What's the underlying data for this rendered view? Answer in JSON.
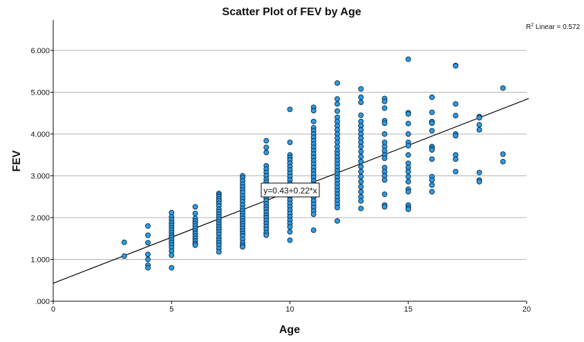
{
  "chart_data": {
    "type": "scatter",
    "title": "Scatter Plot of FEV by Age",
    "xlabel": "Age",
    "ylabel": "FEV",
    "xlim": [
      0,
      20
    ],
    "ylim": [
      0,
      6.5
    ],
    "x_ticks": [
      0,
      5,
      10,
      15,
      20
    ],
    "x_tick_labels": [
      "0",
      "5",
      "10",
      "15",
      "20"
    ],
    "y_ticks": [
      0,
      1,
      2,
      3,
      4,
      5,
      6
    ],
    "y_tick_labels": [
      ".000",
      "1.000",
      "2.000",
      "3.000",
      "4.000",
      "5.000",
      "6.000"
    ],
    "grid": "horizontal",
    "fit_line": {
      "intercept": 0.43,
      "slope": 0.22,
      "label": "y=0.43+0.22*x"
    },
    "r2_label": {
      "prefix": "R",
      "sup": "2",
      "text": " Linear = 0.572"
    },
    "marker_color": "#2E9BE6",
    "marker_edge": "#0b2a44",
    "points": [
      [
        3,
        1.41
      ],
      [
        3,
        1.08
      ],
      [
        4,
        1.8
      ],
      [
        4,
        1.58
      ],
      [
        4,
        1.4
      ],
      [
        4,
        1.12
      ],
      [
        4,
        1.0
      ],
      [
        4,
        0.86
      ],
      [
        4,
        0.8
      ],
      [
        5,
        2.12
      ],
      [
        5,
        2.02
      ],
      [
        5,
        1.95
      ],
      [
        5,
        1.88
      ],
      [
        5,
        1.82
      ],
      [
        5,
        1.76
      ],
      [
        5,
        1.7
      ],
      [
        5,
        1.64
      ],
      [
        5,
        1.58
      ],
      [
        5,
        1.53
      ],
      [
        5,
        1.47
      ],
      [
        5,
        1.41
      ],
      [
        5,
        1.35
      ],
      [
        5,
        1.28
      ],
      [
        5,
        1.2
      ],
      [
        5,
        1.1
      ],
      [
        5,
        0.8
      ],
      [
        6,
        2.26
      ],
      [
        6,
        2.1
      ],
      [
        6,
        1.98
      ],
      [
        6,
        1.92
      ],
      [
        6,
        1.86
      ],
      [
        6,
        1.8
      ],
      [
        6,
        1.74
      ],
      [
        6,
        1.68
      ],
      [
        6,
        1.62
      ],
      [
        6,
        1.56
      ],
      [
        6,
        1.5
      ],
      [
        6,
        1.44
      ],
      [
        6,
        1.38
      ],
      [
        6,
        1.34
      ],
      [
        7,
        2.58
      ],
      [
        7,
        2.54
      ],
      [
        7,
        2.5
      ],
      [
        7,
        2.45
      ],
      [
        7,
        2.4
      ],
      [
        7,
        2.34
      ],
      [
        7,
        2.28
      ],
      [
        7,
        2.2
      ],
      [
        7,
        2.14
      ],
      [
        7,
        2.08
      ],
      [
        7,
        2.02
      ],
      [
        7,
        1.96
      ],
      [
        7,
        1.9
      ],
      [
        7,
        1.84
      ],
      [
        7,
        1.78
      ],
      [
        7,
        1.72
      ],
      [
        7,
        1.66
      ],
      [
        7,
        1.6
      ],
      [
        7,
        1.52
      ],
      [
        7,
        1.46
      ],
      [
        7,
        1.4
      ],
      [
        7,
        1.34
      ],
      [
        7,
        1.26
      ],
      [
        7,
        1.18
      ],
      [
        8,
        3.0
      ],
      [
        8,
        2.95
      ],
      [
        8,
        2.88
      ],
      [
        8,
        2.8
      ],
      [
        8,
        2.73
      ],
      [
        8,
        2.66
      ],
      [
        8,
        2.6
      ],
      [
        8,
        2.52
      ],
      [
        8,
        2.45
      ],
      [
        8,
        2.38
      ],
      [
        8,
        2.3
      ],
      [
        8,
        2.22
      ],
      [
        8,
        2.16
      ],
      [
        8,
        2.1
      ],
      [
        8,
        2.04
      ],
      [
        8,
        1.98
      ],
      [
        8,
        1.92
      ],
      [
        8,
        1.86
      ],
      [
        8,
        1.8
      ],
      [
        8,
        1.74
      ],
      [
        8,
        1.68
      ],
      [
        8,
        1.62
      ],
      [
        8,
        1.56
      ],
      [
        8,
        1.48
      ],
      [
        8,
        1.4
      ],
      [
        8,
        1.34
      ],
      [
        8,
        1.3
      ],
      [
        9,
        3.84
      ],
      [
        9,
        3.68
      ],
      [
        9,
        3.56
      ],
      [
        9,
        3.24
      ],
      [
        9,
        3.16
      ],
      [
        9,
        3.08
      ],
      [
        9,
        3.0
      ],
      [
        9,
        2.92
      ],
      [
        9,
        2.85
      ],
      [
        9,
        2.78
      ],
      [
        9,
        2.7
      ],
      [
        9,
        2.62
      ],
      [
        9,
        2.54
      ],
      [
        9,
        2.46
      ],
      [
        9,
        2.4
      ],
      [
        9,
        2.33
      ],
      [
        9,
        2.26
      ],
      [
        9,
        2.2
      ],
      [
        9,
        2.13
      ],
      [
        9,
        2.06
      ],
      [
        9,
        2.0
      ],
      [
        9,
        1.93
      ],
      [
        9,
        1.86
      ],
      [
        9,
        1.79
      ],
      [
        9,
        1.72
      ],
      [
        9,
        1.64
      ],
      [
        9,
        1.58
      ],
      [
        10,
        4.59
      ],
      [
        10,
        3.8
      ],
      [
        10,
        3.5
      ],
      [
        10,
        3.44
      ],
      [
        10,
        3.38
      ],
      [
        10,
        3.3
      ],
      [
        10,
        3.22
      ],
      [
        10,
        3.14
      ],
      [
        10,
        3.06
      ],
      [
        10,
        2.98
      ],
      [
        10,
        2.9
      ],
      [
        10,
        2.82
      ],
      [
        10,
        2.74
      ],
      [
        10,
        2.66
      ],
      [
        10,
        2.58
      ],
      [
        10,
        2.5
      ],
      [
        10,
        2.42
      ],
      [
        10,
        2.34
      ],
      [
        10,
        2.26
      ],
      [
        10,
        2.18
      ],
      [
        10,
        2.1
      ],
      [
        10,
        2.02
      ],
      [
        10,
        1.94
      ],
      [
        10,
        1.86
      ],
      [
        10,
        1.78
      ],
      [
        10,
        1.66
      ],
      [
        10,
        1.46
      ],
      [
        11,
        4.64
      ],
      [
        11,
        4.56
      ],
      [
        11,
        4.3
      ],
      [
        11,
        4.15
      ],
      [
        11,
        4.08
      ],
      [
        11,
        4.0
      ],
      [
        11,
        3.92
      ],
      [
        11,
        3.84
      ],
      [
        11,
        3.76
      ],
      [
        11,
        3.68
      ],
      [
        11,
        3.6
      ],
      [
        11,
        3.52
      ],
      [
        11,
        3.44
      ],
      [
        11,
        3.36
      ],
      [
        11,
        3.28
      ],
      [
        11,
        3.2
      ],
      [
        11,
        3.12
      ],
      [
        11,
        3.04
      ],
      [
        11,
        2.96
      ],
      [
        11,
        2.88
      ],
      [
        11,
        2.8
      ],
      [
        11,
        2.72
      ],
      [
        11,
        2.64
      ],
      [
        11,
        2.56
      ],
      [
        11,
        2.48
      ],
      [
        11,
        2.4
      ],
      [
        11,
        2.32
      ],
      [
        11,
        2.24
      ],
      [
        11,
        2.16
      ],
      [
        11,
        2.08
      ],
      [
        11,
        1.7
      ],
      [
        12,
        5.22
      ],
      [
        12,
        4.84
      ],
      [
        12,
        4.72
      ],
      [
        12,
        4.55
      ],
      [
        12,
        4.4
      ],
      [
        12,
        4.3
      ],
      [
        12,
        4.2
      ],
      [
        12,
        4.1
      ],
      [
        12,
        4.0
      ],
      [
        12,
        3.9
      ],
      [
        12,
        3.8
      ],
      [
        12,
        3.7
      ],
      [
        12,
        3.6
      ],
      [
        12,
        3.52
      ],
      [
        12,
        3.44
      ],
      [
        12,
        3.36
      ],
      [
        12,
        3.28
      ],
      [
        12,
        3.2
      ],
      [
        12,
        3.12
      ],
      [
        12,
        3.04
      ],
      [
        12,
        2.96
      ],
      [
        12,
        2.88
      ],
      [
        12,
        2.8
      ],
      [
        12,
        2.72
      ],
      [
        12,
        2.64
      ],
      [
        12,
        2.56
      ],
      [
        12,
        2.48
      ],
      [
        12,
        2.4
      ],
      [
        12,
        2.32
      ],
      [
        12,
        2.24
      ],
      [
        12,
        1.92
      ],
      [
        13,
        5.08
      ],
      [
        13,
        4.88
      ],
      [
        13,
        4.76
      ],
      [
        13,
        4.45
      ],
      [
        13,
        4.3
      ],
      [
        13,
        4.2
      ],
      [
        13,
        4.1
      ],
      [
        13,
        4.0
      ],
      [
        13,
        3.9
      ],
      [
        13,
        3.8
      ],
      [
        13,
        3.7
      ],
      [
        13,
        3.58
      ],
      [
        13,
        3.46
      ],
      [
        13,
        3.34
      ],
      [
        13,
        3.22
      ],
      [
        13,
        3.1
      ],
      [
        13,
        2.98
      ],
      [
        13,
        2.86
      ],
      [
        13,
        2.74
      ],
      [
        13,
        2.62
      ],
      [
        13,
        2.5
      ],
      [
        13,
        2.4
      ],
      [
        13,
        2.22
      ],
      [
        14,
        4.85
      ],
      [
        14,
        4.78
      ],
      [
        14,
        4.62
      ],
      [
        14,
        4.32
      ],
      [
        14,
        4.26
      ],
      [
        14,
        4.0
      ],
      [
        14,
        3.8
      ],
      [
        14,
        3.7
      ],
      [
        14,
        3.6
      ],
      [
        14,
        3.5
      ],
      [
        14,
        3.42
      ],
      [
        14,
        3.2
      ],
      [
        14,
        3.1
      ],
      [
        14,
        3.0
      ],
      [
        14,
        2.9
      ],
      [
        14,
        2.56
      ],
      [
        14,
        2.3
      ],
      [
        14,
        2.26
      ],
      [
        15,
        5.79
      ],
      [
        15,
        4.51
      ],
      [
        15,
        4.48
      ],
      [
        15,
        4.25
      ],
      [
        15,
        4.0
      ],
      [
        15,
        3.8
      ],
      [
        15,
        3.72
      ],
      [
        15,
        3.5
      ],
      [
        15,
        3.3
      ],
      [
        15,
        3.2
      ],
      [
        15,
        3.1
      ],
      [
        15,
        2.98
      ],
      [
        15,
        2.86
      ],
      [
        15,
        2.68
      ],
      [
        15,
        2.62
      ],
      [
        15,
        2.3
      ],
      [
        15,
        2.24
      ],
      [
        15,
        2.2
      ],
      [
        16,
        4.88
      ],
      [
        16,
        4.52
      ],
      [
        16,
        4.3
      ],
      [
        16,
        4.26
      ],
      [
        16,
        4.08
      ],
      [
        16,
        3.7
      ],
      [
        16,
        3.66
      ],
      [
        16,
        3.62
      ],
      [
        16,
        3.4
      ],
      [
        16,
        2.98
      ],
      [
        16,
        2.9
      ],
      [
        16,
        2.78
      ],
      [
        16,
        2.62
      ],
      [
        17,
        5.64
      ],
      [
        17,
        5.63
      ],
      [
        17,
        4.72
      ],
      [
        17,
        4.44
      ],
      [
        17,
        4.0
      ],
      [
        17,
        3.96
      ],
      [
        17,
        3.5
      ],
      [
        17,
        3.4
      ],
      [
        17,
        3.1
      ],
      [
        18,
        4.42
      ],
      [
        18,
        4.39
      ],
      [
        18,
        4.22
      ],
      [
        18,
        4.1
      ],
      [
        18,
        3.08
      ],
      [
        18,
        2.9
      ],
      [
        18,
        2.86
      ],
      [
        19,
        5.1
      ],
      [
        19,
        3.52
      ],
      [
        19,
        3.34
      ]
    ]
  }
}
